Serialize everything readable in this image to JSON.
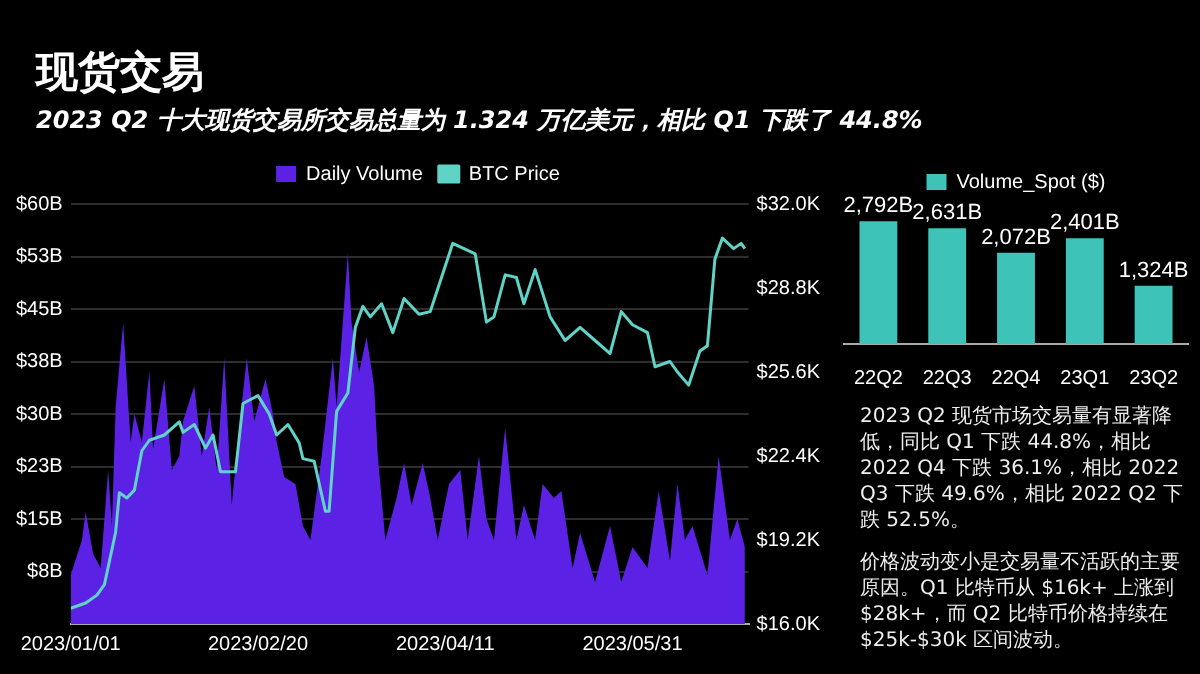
{
  "chart_data": [
    {
      "type": "area",
      "title": "现货交易",
      "subtitle": "2023 Q2 十大现货交易所交易总量为 1.324 万亿美元，相比 Q1 下跌了 44.8%",
      "series": [
        {
          "name": "Daily Volume",
          "type": "area",
          "color": "#5b22e6",
          "x": [
            "2023-01-01",
            "2023-01-04",
            "2023-01-05",
            "2023-01-07",
            "2023-01-09",
            "2023-01-11",
            "2023-01-12",
            "2023-01-13",
            "2023-01-15",
            "2023-01-17",
            "2023-01-18",
            "2023-01-20",
            "2023-01-22",
            "2023-01-23",
            "2023-01-26",
            "2023-01-28",
            "2023-01-30",
            "2023-01-31",
            "2023-02-03",
            "2023-02-05",
            "2023-02-07",
            "2023-02-09",
            "2023-02-11",
            "2023-02-13",
            "2023-02-15",
            "2023-02-17",
            "2023-02-19",
            "2023-02-22",
            "2023-02-24",
            "2023-02-25",
            "2023-02-27",
            "2023-03-02",
            "2023-03-04",
            "2023-03-06",
            "2023-03-09",
            "2023-03-12",
            "2023-03-13",
            "2023-03-16",
            "2023-03-17",
            "2023-03-19",
            "2023-03-21",
            "2023-03-23",
            "2023-03-24",
            "2023-03-26",
            "2023-03-29",
            "2023-03-31",
            "2023-04-02",
            "2023-04-05",
            "2023-04-07",
            "2023-04-09",
            "2023-04-12",
            "2023-04-15",
            "2023-04-17",
            "2023-04-20",
            "2023-04-22",
            "2023-04-24",
            "2023-04-27",
            "2023-04-30",
            "2023-05-02",
            "2023-05-05",
            "2023-05-07",
            "2023-05-10",
            "2023-05-12",
            "2023-05-15",
            "2023-05-17",
            "2023-05-21",
            "2023-05-25",
            "2023-05-28",
            "2023-05-31",
            "2023-06-04",
            "2023-06-07",
            "2023-06-10",
            "2023-06-12",
            "2023-06-14",
            "2023-06-16",
            "2023-06-20",
            "2023-06-23",
            "2023-06-24",
            "2023-06-26",
            "2023-06-28",
            "2023-06-30"
          ],
          "values": [
            7,
            12,
            16,
            10,
            8,
            22,
            14,
            31,
            43,
            26,
            30,
            26,
            36,
            25,
            35,
            22,
            24,
            29,
            34,
            24,
            31,
            22,
            38,
            17,
            28,
            38,
            29,
            35,
            30,
            26,
            21,
            20,
            14,
            12,
            24,
            38,
            31,
            53,
            43,
            36,
            41,
            34,
            24,
            12,
            18,
            23,
            17,
            23,
            18,
            12,
            20,
            22,
            12,
            24,
            15,
            12,
            28,
            12,
            17,
            12,
            20,
            18,
            19,
            8,
            13,
            6,
            14,
            6,
            11,
            8,
            19,
            9,
            20,
            12,
            14,
            7,
            24,
            20,
            12,
            15,
            11
          ]
        },
        {
          "name": "BTC Price",
          "type": "line",
          "axis": "y2",
          "color": "#5fd3c6",
          "x": [
            "2023-01-01",
            "2023-01-05",
            "2023-01-08",
            "2023-01-10",
            "2023-01-13",
            "2023-01-14",
            "2023-01-16",
            "2023-01-18",
            "2023-01-20",
            "2023-01-22",
            "2023-01-26",
            "2023-01-30",
            "2023-01-31",
            "2023-02-03",
            "2023-02-06",
            "2023-02-08",
            "2023-02-10",
            "2023-02-14",
            "2023-02-16",
            "2023-02-20",
            "2023-02-23",
            "2023-02-25",
            "2023-02-28",
            "2023-03-03",
            "2023-03-04",
            "2023-03-07",
            "2023-03-10",
            "2023-03-11",
            "2023-03-13",
            "2023-03-16",
            "2023-03-18",
            "2023-03-20",
            "2023-03-22",
            "2023-03-25",
            "2023-03-28",
            "2023-03-31",
            "2023-04-04",
            "2023-04-07",
            "2023-04-10",
            "2023-04-13",
            "2023-04-16",
            "2023-04-19",
            "2023-04-22",
            "2023-04-24",
            "2023-04-27",
            "2023-04-30",
            "2023-05-02",
            "2023-05-05",
            "2023-05-09",
            "2023-05-13",
            "2023-05-17",
            "2023-05-21",
            "2023-05-25",
            "2023-05-28",
            "2023-05-31",
            "2023-06-04",
            "2023-06-06",
            "2023-06-10",
            "2023-06-12",
            "2023-06-15",
            "2023-06-18",
            "2023-06-20",
            "2023-06-22",
            "2023-06-24",
            "2023-06-27",
            "2023-06-29",
            "2023-06-30"
          ],
          "values": [
            16.6,
            16.8,
            17.1,
            17.5,
            19.5,
            21.0,
            20.8,
            21.1,
            22.6,
            23.0,
            23.2,
            23.7,
            23.3,
            23.6,
            22.7,
            23.2,
            21.8,
            21.8,
            24.4,
            24.7,
            24.0,
            23.2,
            23.6,
            22.9,
            22.3,
            22.2,
            20.3,
            20.3,
            24.1,
            24.8,
            27.3,
            28.1,
            27.7,
            28.2,
            27.1,
            28.4,
            27.8,
            27.9,
            29.2,
            30.5,
            30.3,
            30.1,
            27.5,
            27.7,
            29.3,
            29.2,
            28.2,
            29.5,
            27.7,
            26.8,
            27.3,
            26.8,
            26.3,
            27.9,
            27.4,
            27.1,
            25.8,
            26.0,
            25.6,
            25.1,
            26.4,
            26.6,
            29.9,
            30.7,
            30.3,
            30.5,
            30.3
          ]
        }
      ],
      "xlim": [
        "2023-01-01",
        "2023-07-01"
      ],
      "xticks": [
        {
          "value": "2023-01-01",
          "label": "2023/01/01"
        },
        {
          "value": "2023-02-20",
          "label": "2023/02/20"
        },
        {
          "value": "2023-04-11",
          "label": "2023/04/11"
        },
        {
          "value": "2023-05-31",
          "label": "2023/05/31"
        }
      ],
      "ylim": [
        0,
        60
      ],
      "yticks": [
        {
          "value": 7.5,
          "label": "$8B"
        },
        {
          "value": 15,
          "label": "$15B"
        },
        {
          "value": 22.5,
          "label": "$23B"
        },
        {
          "value": 30,
          "label": "$30B"
        },
        {
          "value": 37.5,
          "label": "$38B"
        },
        {
          "value": 45,
          "label": "$45B"
        },
        {
          "value": 52.5,
          "label": "$53B"
        },
        {
          "value": 60,
          "label": "$60B"
        }
      ],
      "y2lim": [
        16,
        32
      ],
      "y2ticks": [
        {
          "value": 16,
          "label": "$16.0K"
        },
        {
          "value": 19.2,
          "label": "$19.2K"
        },
        {
          "value": 22.4,
          "label": "$22.4K"
        },
        {
          "value": 25.6,
          "label": "$25.6K"
        },
        {
          "value": 28.8,
          "label": "$28.8K"
        },
        {
          "value": 32,
          "label": "$32.0K"
        }
      ],
      "grid": "y",
      "legend": "top"
    },
    {
      "type": "bar",
      "categories": [
        "22Q2",
        "22Q3",
        "22Q4",
        "23Q1",
        "23Q2"
      ],
      "series": [
        {
          "name": "Volume_Spot ($)",
          "color": "#3ec3b8",
          "values": [
            2792,
            2631,
            2072,
            2401,
            1324
          ],
          "value_labels": [
            "2,792B",
            "2,631B",
            "2,072B",
            "2,401B",
            "1,324B"
          ]
        }
      ],
      "legend": "top",
      "annotations": [
        "2023 Q2 现货市场交易量有显著降低，同比 Q1 下跌 44.8%，相比 2022 Q4 下跌 36.1%，相比 2022 Q3 下跌 49.6%，相比 2022 Q2 下跌 52.5%。",
        "价格波动变小是交易量不活跃的主要原因。Q1 比特币从 $16k+ 上涨到 $28k+，而 Q2 比特币价格持续在 $25k-$30k 区间波动。"
      ]
    }
  ]
}
